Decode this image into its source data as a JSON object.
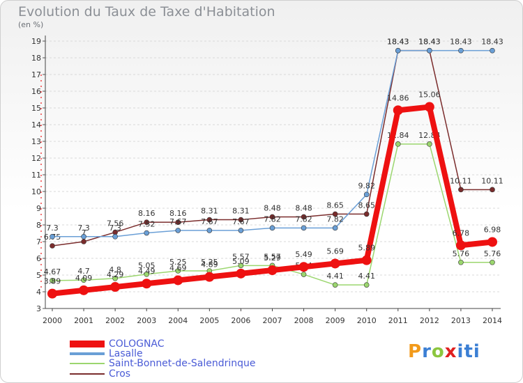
{
  "title": "Evolution du Taux de Taxe d'Habitation",
  "unit": "(en %)",
  "logo": "Proxiti",
  "chart_data": {
    "type": "line",
    "x": [
      "2000",
      "2001",
      "2002",
      "2003",
      "2004",
      "2005",
      "2006",
      "2007",
      "2008",
      "2009",
      "2010",
      "2011",
      "2012",
      "2013",
      "2014"
    ],
    "ylim": [
      3,
      19
    ],
    "yticks": [
      3,
      4,
      5,
      6,
      7,
      8,
      9,
      10,
      11,
      12,
      13,
      14,
      15,
      16,
      17,
      18,
      19
    ],
    "grid": "horizontal dashed",
    "legend": "bottom-left",
    "series": [
      {
        "name": "COLOGNAC",
        "color": "#ee1111",
        "values": [
          3.89,
          4.09,
          4.29,
          4.49,
          4.69,
          4.89,
          5.09,
          5.29,
          5.49,
          5.69,
          5.89,
          14.86,
          15.06,
          6.78,
          6.98
        ]
      },
      {
        "name": "Lasalle",
        "color": "#6a9fd6",
        "values": [
          7.3,
          7.3,
          7.3,
          7.52,
          7.67,
          7.67,
          7.67,
          7.82,
          7.82,
          7.82,
          9.82,
          18.43,
          18.43,
          18.43,
          18.43
        ]
      },
      {
        "name": "Saint-Bonnet-de-Salendrinque",
        "color": "#9bd66e",
        "values": [
          4.67,
          4.7,
          4.8,
          5.05,
          5.25,
          5.25,
          5.57,
          5.57,
          5.04,
          4.41,
          4.41,
          12.84,
          12.84,
          5.76,
          5.76
        ]
      },
      {
        "name": "Cros",
        "color": "#7a2c2c",
        "values": [
          6.75,
          7.0,
          7.56,
          8.16,
          8.16,
          8.31,
          8.31,
          8.48,
          8.48,
          8.65,
          8.65,
          18.43,
          18.43,
          10.11,
          10.11
        ]
      }
    ]
  }
}
